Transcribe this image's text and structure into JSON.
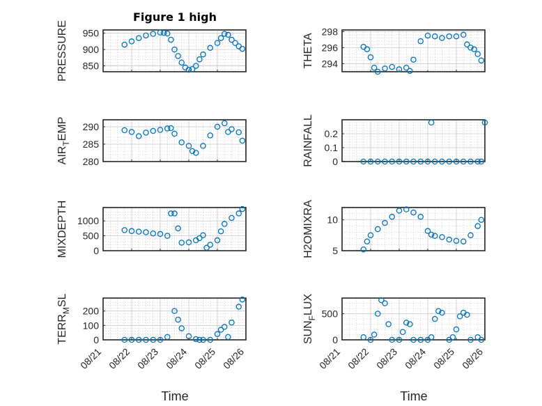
{
  "figure": {
    "title": "Figure 1 high",
    "time_label": "Time",
    "date_ticks": [
      "08/21",
      "08/22",
      "08/23",
      "08/24",
      "08/25",
      "08/26"
    ]
  },
  "colors": {
    "marker": "#0072BD",
    "axes": "#262626",
    "grid": "#c8c8c8"
  },
  "chart_data": [
    {
      "type": "scatter",
      "ylabel": "PRESSURE",
      "ylim": [
        832,
        960
      ],
      "yticks": [
        850,
        900,
        950
      ],
      "yticklabels": [
        "850",
        "900",
        "950"
      ],
      "grid": true,
      "marker": "circle",
      "x": [
        "08/21 18:00",
        "08/22 00:00",
        "08/22 06:00",
        "08/22 12:00",
        "08/22 18:00",
        "08/23 00:00",
        "08/23 03:00",
        "08/23 06:00",
        "08/23 09:00",
        "08/23 12:00",
        "08/23 15:00",
        "08/23 18:00",
        "08/23 21:00",
        "08/24 00:00",
        "08/24 03:00",
        "08/24 06:00",
        "08/24 09:00",
        "08/24 12:00",
        "08/24 18:00",
        "08/25 00:00",
        "08/25 03:00",
        "08/25 06:00",
        "08/25 09:00",
        "08/25 12:00",
        "08/25 15:00",
        "08/25 18:00",
        "08/25 21:00"
      ],
      "y": [
        915,
        925,
        935,
        943,
        948,
        952,
        951,
        949,
        930,
        900,
        880,
        860,
        845,
        838,
        840,
        850,
        870,
        885,
        905,
        920,
        935,
        948,
        945,
        930,
        920,
        910,
        902
      ]
    },
    {
      "type": "scatter",
      "ylabel": "THETA",
      "ylim": [
        293,
        298.2
      ],
      "yticks": [
        294,
        296,
        298
      ],
      "yticklabels": [
        "294",
        "296",
        "298"
      ],
      "grid": true,
      "marker": "circle",
      "x": [
        "08/21 18:00",
        "08/21 21:00",
        "08/22 00:00",
        "08/22 03:00",
        "08/22 06:00",
        "08/22 12:00",
        "08/22 18:00",
        "08/23 00:00",
        "08/23 06:00",
        "08/23 09:00",
        "08/23 12:00",
        "08/23 18:00",
        "08/24 00:00",
        "08/24 06:00",
        "08/24 12:00",
        "08/24 18:00",
        "08/25 00:00",
        "08/25 06:00",
        "08/25 09:00",
        "08/25 12:00",
        "08/25 15:00",
        "08/25 18:00",
        "08/25 21:00"
      ],
      "y": [
        296.1,
        295.8,
        294.8,
        293.5,
        293.0,
        293.4,
        293.6,
        293.3,
        293.5,
        293.1,
        294.5,
        296.8,
        297.5,
        297.4,
        297.2,
        297.4,
        297.4,
        297.6,
        296.4,
        296.0,
        295.8,
        295.2,
        294.4
      ]
    },
    {
      "type": "scatter",
      "ylabel": "AIR_TEMP",
      "ylim": [
        280,
        292
      ],
      "yticks": [
        280,
        285,
        290
      ],
      "yticklabels": [
        "280",
        "285",
        "290"
      ],
      "grid": true,
      "marker": "circle",
      "x": [
        "08/21 18:00",
        "08/22 00:00",
        "08/22 06:00",
        "08/22 12:00",
        "08/22 18:00",
        "08/23 00:00",
        "08/23 06:00",
        "08/23 09:00",
        "08/23 12:00",
        "08/23 18:00",
        "08/24 00:00",
        "08/24 03:00",
        "08/24 06:00",
        "08/24 12:00",
        "08/24 18:00",
        "08/25 00:00",
        "08/25 06:00",
        "08/25 09:00",
        "08/25 12:00",
        "08/25 18:00",
        "08/25 21:00"
      ],
      "y": [
        289.0,
        288.5,
        287.3,
        288.3,
        288.8,
        289.1,
        289.5,
        289.6,
        288.0,
        285.5,
        284.5,
        283.0,
        282.5,
        284.5,
        287.5,
        290.0,
        291.0,
        288.5,
        289.3,
        288.4,
        286.0
      ]
    },
    {
      "type": "scatter",
      "ylabel": "RAINFALL",
      "ylim": [
        0,
        0.3
      ],
      "yticks": [
        0,
        0.1,
        0.2
      ],
      "yticklabels": [
        "0",
        "0.1",
        "0.2"
      ],
      "grid": true,
      "marker": "circle",
      "x": [
        "08/21 18:00",
        "08/22 00:00",
        "08/22 06:00",
        "08/22 12:00",
        "08/22 18:00",
        "08/23 00:00",
        "08/23 06:00",
        "08/23 12:00",
        "08/23 18:00",
        "08/24 00:00",
        "08/24 03:00",
        "08/24 06:00",
        "08/24 12:00",
        "08/24 18:00",
        "08/25 00:00",
        "08/25 06:00",
        "08/25 12:00",
        "08/25 18:00",
        "08/25 21:00",
        "08/26 00:00"
      ],
      "y": [
        0,
        0,
        0,
        0,
        0,
        0,
        0,
        0,
        0,
        0,
        0.28,
        0,
        0,
        0,
        0,
        0,
        0,
        0,
        0,
        0.28
      ]
    },
    {
      "type": "scatter",
      "ylabel": "MIXDEPTH",
      "ylim": [
        0,
        1450
      ],
      "yticks": [
        0,
        500,
        1000
      ],
      "yticklabels": [
        "0",
        "500",
        "1000"
      ],
      "grid": true,
      "marker": "circle",
      "x": [
        "08/21 18:00",
        "08/22 00:00",
        "08/22 06:00",
        "08/22 12:00",
        "08/22 18:00",
        "08/23 00:00",
        "08/23 06:00",
        "08/23 09:00",
        "08/23 12:00",
        "08/23 15:00",
        "08/23 18:00",
        "08/24 00:00",
        "08/24 06:00",
        "08/24 09:00",
        "08/24 12:00",
        "08/24 15:00",
        "08/24 18:00",
        "08/25 00:00",
        "08/25 03:00",
        "08/25 06:00",
        "08/25 12:00",
        "08/25 18:00",
        "08/25 21:00"
      ],
      "y": [
        690,
        660,
        640,
        620,
        580,
        560,
        500,
        1250,
        1250,
        750,
        270,
        280,
        350,
        420,
        520,
        100,
        200,
        350,
        650,
        900,
        1100,
        1250,
        1400
      ]
    },
    {
      "type": "scatter",
      "ylabel": "H2OMIXRA",
      "ylim": [
        5,
        12
      ],
      "yticks": [
        5,
        10
      ],
      "yticklabels": [
        "5",
        "10"
      ],
      "grid": true,
      "marker": "circle",
      "x": [
        "08/21 18:00",
        "08/21 21:00",
        "08/22 00:00",
        "08/22 06:00",
        "08/22 12:00",
        "08/22 18:00",
        "08/23 00:00",
        "08/23 06:00",
        "08/23 12:00",
        "08/23 18:00",
        "08/24 00:00",
        "08/24 03:00",
        "08/24 06:00",
        "08/24 12:00",
        "08/24 18:00",
        "08/25 00:00",
        "08/25 06:00",
        "08/25 12:00",
        "08/25 18:00",
        "08/25 21:00"
      ],
      "y": [
        5.2,
        6.5,
        7.5,
        8.5,
        9.5,
        10.5,
        11.5,
        11.7,
        11.2,
        10.5,
        8.2,
        7.6,
        7.4,
        7.2,
        6.8,
        6.6,
        6.5,
        7.5,
        9.0,
        10.0
      ]
    },
    {
      "type": "scatter",
      "ylabel": "TERR_MSL",
      "ylim": [
        0,
        290
      ],
      "yticks": [
        0,
        100,
        200
      ],
      "yticklabels": [
        "0",
        "100",
        "200"
      ],
      "grid": true,
      "marker": "circle",
      "x": [
        "08/21 18:00",
        "08/22 00:00",
        "08/22 06:00",
        "08/22 12:00",
        "08/22 18:00",
        "08/23 00:00",
        "08/23 06:00",
        "08/23 12:00",
        "08/23 15:00",
        "08/23 18:00",
        "08/24 00:00",
        "08/24 06:00",
        "08/24 09:00",
        "08/24 12:00",
        "08/24 18:00",
        "08/25 00:00",
        "08/25 03:00",
        "08/25 06:00",
        "08/25 09:00",
        "08/25 12:00",
        "08/25 18:00",
        "08/25 21:00"
      ],
      "y": [
        0,
        0,
        0,
        0,
        0,
        0,
        20,
        200,
        140,
        80,
        25,
        5,
        0,
        0,
        0,
        40,
        70,
        90,
        20,
        120,
        230,
        280
      ]
    },
    {
      "type": "scatter",
      "ylabel": "SUN_FLUX",
      "ylim": [
        0,
        800
      ],
      "yticks": [
        0,
        500
      ],
      "yticklabels": [
        "0",
        "500"
      ],
      "grid": true,
      "marker": "circle",
      "x": [
        "08/21 18:00",
        "08/22 00:00",
        "08/22 03:00",
        "08/22 06:00",
        "08/22 09:00",
        "08/22 12:00",
        "08/22 15:00",
        "08/22 18:00",
        "08/23 00:00",
        "08/23 03:00",
        "08/23 06:00",
        "08/23 09:00",
        "08/23 12:00",
        "08/23 18:00",
        "08/24 00:00",
        "08/24 03:00",
        "08/24 06:00",
        "08/24 09:00",
        "08/24 12:00",
        "08/24 18:00",
        "08/24 21:00",
        "08/25 00:00",
        "08/25 03:00",
        "08/25 06:00",
        "08/25 09:00",
        "08/25 12:00",
        "08/25 18:00",
        "08/25 21:00"
      ],
      "y": [
        50,
        0,
        100,
        500,
        760,
        700,
        300,
        0,
        0,
        150,
        330,
        300,
        0,
        0,
        0,
        50,
        400,
        550,
        520,
        0,
        50,
        200,
        450,
        520,
        480,
        0,
        50,
        0
      ]
    }
  ]
}
